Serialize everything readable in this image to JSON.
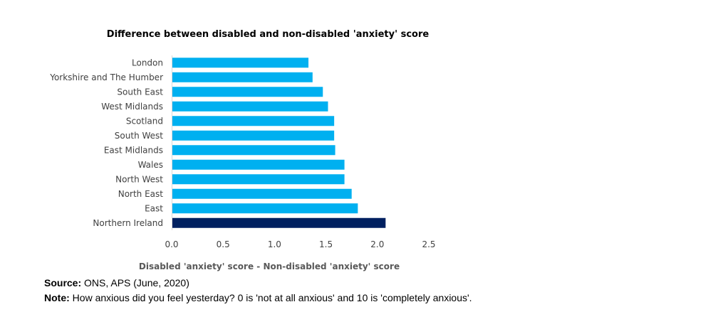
{
  "chart_data": {
    "type": "bar",
    "orientation": "horizontal",
    "title": "Difference between disabled and non-disabled 'anxiety' score",
    "xlabel": "Disabled 'anxiety' score - Non-disabled 'anxiety' score",
    "categories": [
      "London",
      "Yorkshire and The Humber",
      "South East",
      "West Midlands",
      "Scotland",
      "South West",
      "East Midlands",
      "Wales",
      "North West",
      "North East",
      "East",
      "Northern Ireland"
    ],
    "values": [
      1.33,
      1.37,
      1.47,
      1.52,
      1.58,
      1.58,
      1.59,
      1.68,
      1.68,
      1.75,
      1.81,
      2.08
    ],
    "xlim": [
      0,
      2.5
    ],
    "ticks": [
      "0.0",
      "0.5",
      "1.0",
      "1.5",
      "2.0",
      "2.5"
    ],
    "tick_values": [
      0,
      0.5,
      1.0,
      1.5,
      2.0,
      2.5
    ],
    "colors": {
      "default": "#00B0F0",
      "highlight": "#002060"
    },
    "highlight": "Northern Ireland",
    "grid": false,
    "legend": "none"
  },
  "footer": {
    "source_label": "Source:",
    "source_text": " ONS, APS (June, 2020)",
    "note_label": "Note:",
    "note_text": " How anxious did you feel yesterday? 0 is 'not at all anxious' and 10 is 'completely anxious'."
  }
}
